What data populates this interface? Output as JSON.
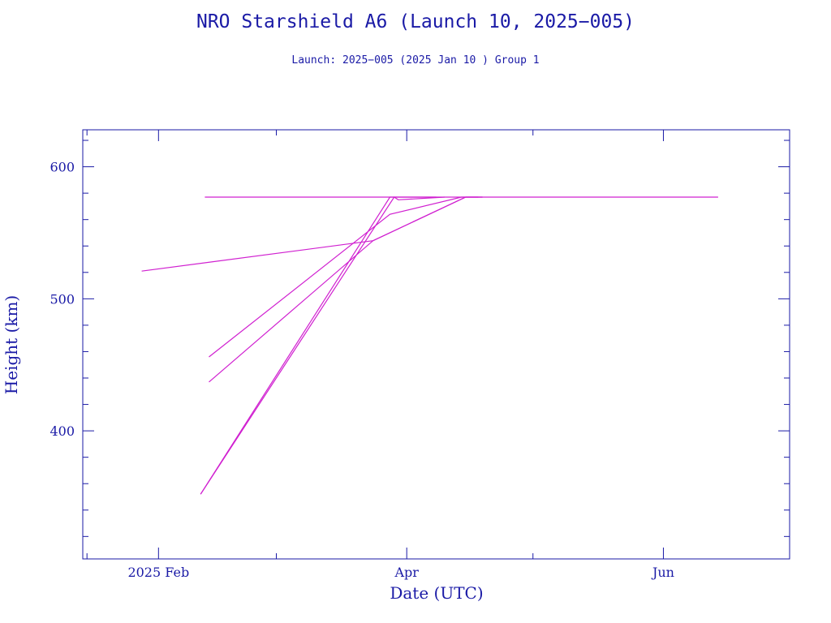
{
  "chart_data": {
    "type": "line",
    "title": "NRO Starshield A6 (Launch 10, 2025−005)",
    "subtitle": "Launch: 2025−005  (2025 Jan 10 )  Group 1",
    "xlabel": "Date (UTC)",
    "ylabel": "Height (km)",
    "x_axis_type": "date",
    "xlim": [
      "2025-01-14",
      "2025-07-01"
    ],
    "ylim": [
      303,
      628
    ],
    "x_ticks": [
      {
        "date": "2025-02-01",
        "label": "2025 Feb"
      },
      {
        "date": "2025-04-01",
        "label": "Apr"
      },
      {
        "date": "2025-06-01",
        "label": "Jun"
      }
    ],
    "x_minor_ticks": [
      "2025-01-15",
      "2025-03-01",
      "2025-05-01",
      "2025-07-01"
    ],
    "y_ticks": [
      400,
      500,
      600
    ],
    "y_minor_step": 20,
    "grid": false,
    "legend": "none",
    "line_color": "#d020d0",
    "axis_color": "#1a1aa6",
    "series": [
      {
        "points": [
          [
            "2025-01-28",
            521
          ],
          [
            "2025-03-24",
            544
          ],
          [
            "2025-04-15",
            577
          ],
          [
            "2025-04-19",
            577
          ]
        ]
      },
      {
        "points": [
          [
            "2025-02-13",
            456
          ],
          [
            "2025-03-28",
            564
          ],
          [
            "2025-04-14",
            577
          ],
          [
            "2025-04-18",
            577
          ]
        ]
      },
      {
        "points": [
          [
            "2025-02-13",
            437
          ],
          [
            "2025-03-24",
            544
          ],
          [
            "2025-04-15",
            577
          ],
          [
            "2025-04-19",
            577
          ]
        ]
      },
      {
        "points": [
          [
            "2025-02-11",
            352
          ],
          [
            "2025-03-29",
            577
          ],
          [
            "2025-03-30",
            575
          ],
          [
            "2025-04-10",
            577
          ]
        ]
      },
      {
        "points": [
          [
            "2025-02-11",
            352
          ],
          [
            "2025-03-28",
            577
          ],
          [
            "2025-03-30",
            577
          ],
          [
            "2025-04-08",
            577
          ]
        ]
      },
      {
        "points": [
          [
            "2025-02-12",
            577
          ],
          [
            "2025-06-14",
            577
          ]
        ]
      }
    ]
  }
}
